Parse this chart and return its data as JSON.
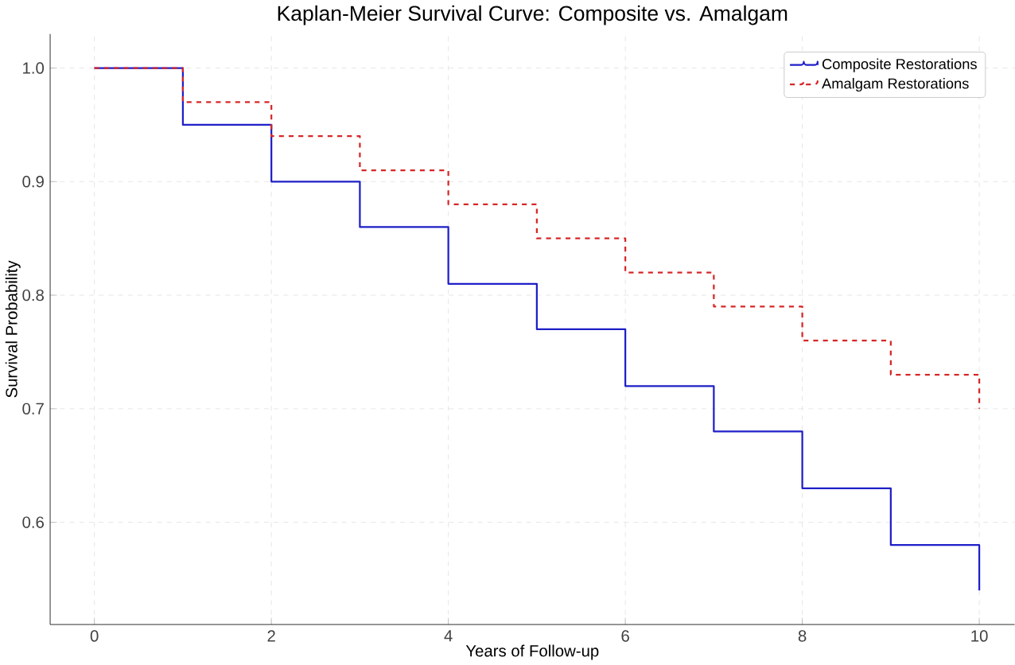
{
  "chart_data": {
    "type": "step",
    "title": "Kaplan-Meier Survival Curve: Composite vs. Amalgam",
    "xlabel": "Years of Follow-up",
    "ylabel": "Survival Probability",
    "x": [
      0,
      1,
      2,
      3,
      4,
      5,
      6,
      7,
      8,
      9,
      10
    ],
    "series": [
      {
        "name": "Composite Restorations",
        "color": "#1f1fc8",
        "line_style": "solid",
        "values": [
          1.0,
          0.95,
          0.9,
          0.86,
          0.81,
          0.77,
          0.72,
          0.68,
          0.63,
          0.58,
          0.54
        ]
      },
      {
        "name": "Amalgam Restorations",
        "color": "#d62728",
        "line_style": "dashed",
        "values": [
          1.0,
          0.97,
          0.94,
          0.91,
          0.88,
          0.85,
          0.82,
          0.79,
          0.76,
          0.73,
          0.7
        ]
      }
    ],
    "xlim": [
      -0.5,
      10.4
    ],
    "ylim": [
      0.51,
      1.03
    ],
    "xticks": [
      0,
      2,
      4,
      6,
      8,
      10
    ],
    "yticks": [
      {
        "value": 0.6,
        "label": "0.6"
      },
      {
        "value": 0.7,
        "label": "0.7"
      },
      {
        "value": 0.8,
        "label": "0.8"
      },
      {
        "value": 0.9,
        "label": "0.9"
      },
      {
        "value": 1.0,
        "label": "1.0"
      }
    ],
    "grid": true,
    "legend": "top right"
  }
}
